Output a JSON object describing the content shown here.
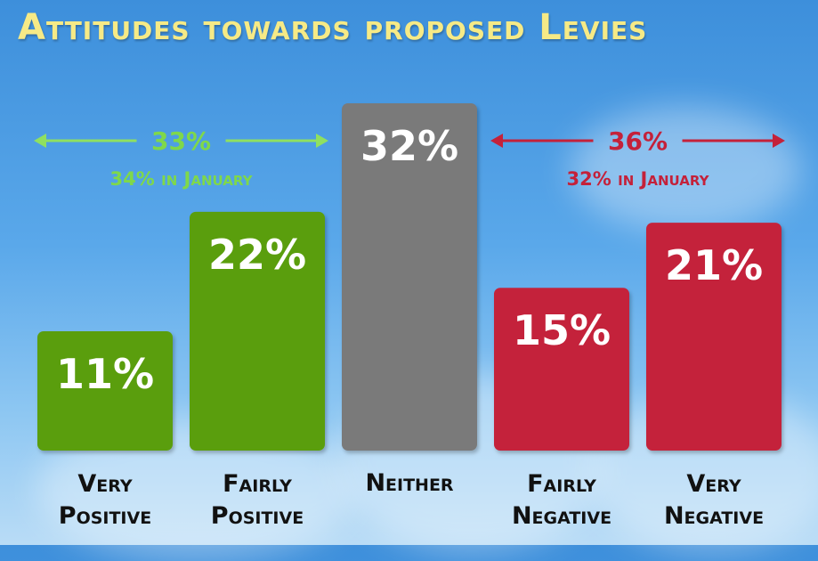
{
  "chart_data": {
    "type": "bar",
    "title": "Attitudes towards proposed Levies",
    "categories": [
      [
        "Very",
        "Positive"
      ],
      [
        "Fairly",
        "Positive"
      ],
      [
        "Neither"
      ],
      [
        "Fairly",
        "Negative"
      ],
      [
        "Very",
        "Negative"
      ]
    ],
    "values": [
      11,
      22,
      32,
      15,
      21
    ],
    "value_labels": [
      "11%",
      "22%",
      "32%",
      "15%",
      "21%"
    ],
    "bar_colors": [
      "#5a9e0f",
      "#5a9e0f",
      "#7a7a7a",
      "#c4213a",
      "#c4213a"
    ],
    "ylim": [
      0,
      32
    ],
    "grid": false,
    "groups": [
      {
        "total": "33%",
        "previous": "34% in January",
        "color": "#8fe060",
        "label_color": "#7fd84a",
        "bars": [
          0,
          1
        ]
      },
      {
        "total": "36%",
        "previous": "32% in January",
        "color": "#c4213a",
        "label_color": "#c4213a",
        "bars": [
          3,
          4
        ]
      }
    ]
  },
  "colors": {
    "title": "#f6ea86",
    "positive": "#5a9e0f",
    "neutral": "#7a7a7a",
    "negative": "#c4213a"
  }
}
